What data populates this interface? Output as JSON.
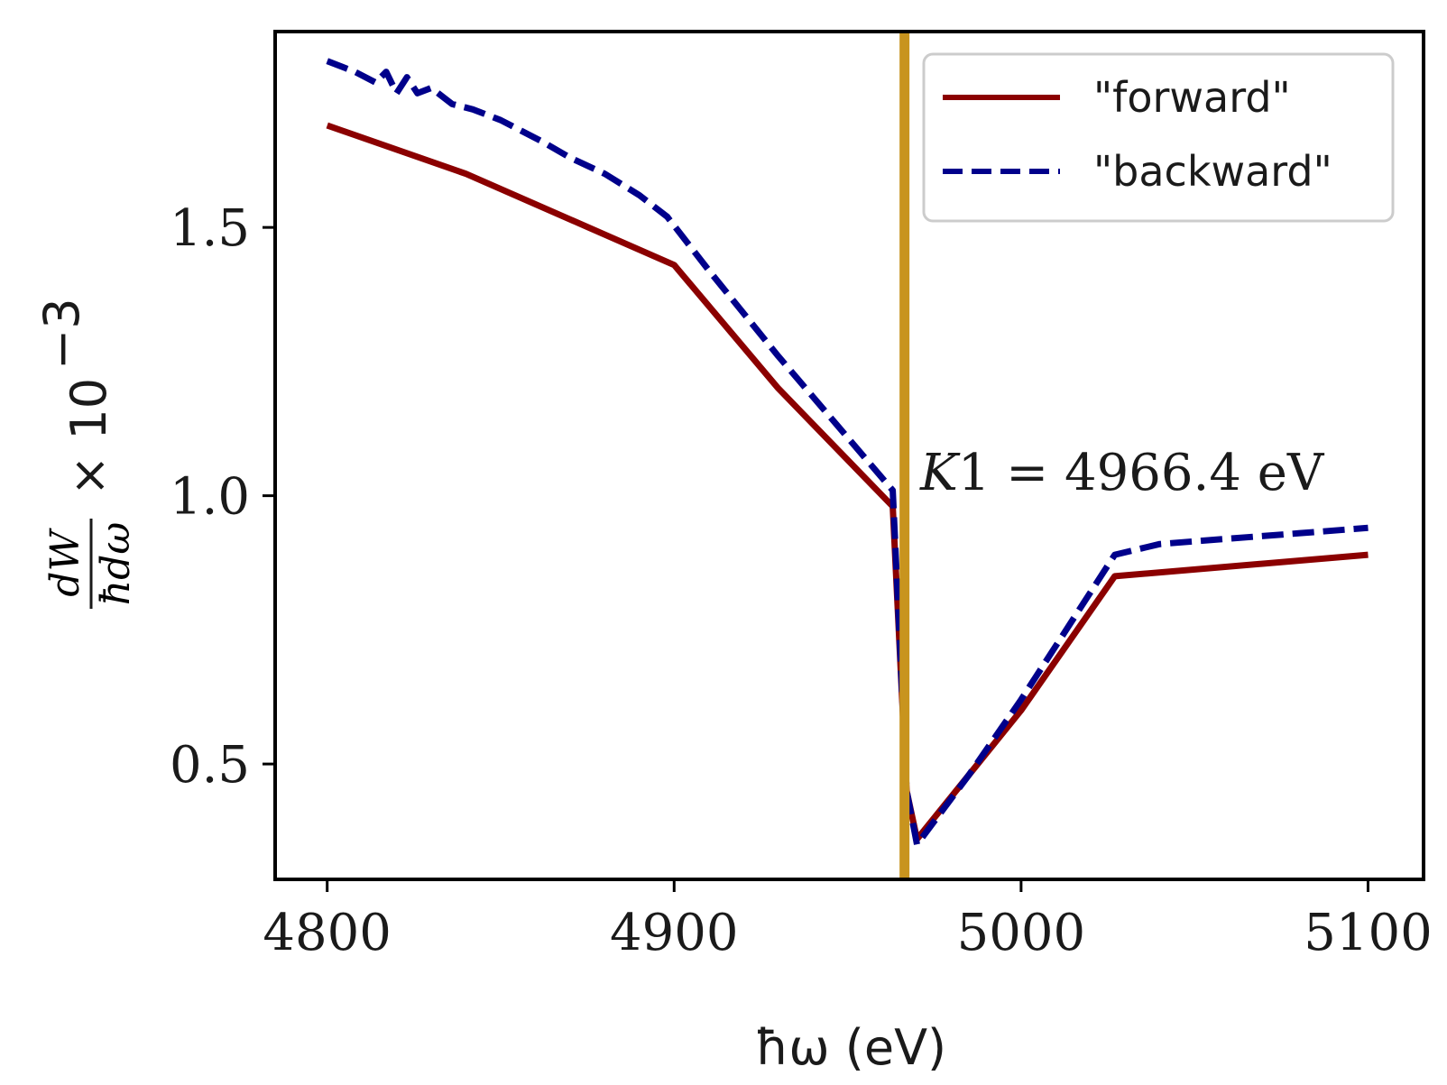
{
  "chart_data": {
    "type": "line",
    "title": "",
    "xlabel": "ħω (eV)",
    "ylabel_frac_num": "dW",
    "ylabel_frac_den": "ħdω",
    "ylabel_suffix": "× 10",
    "ylabel_exp": "−3",
    "xlim": [
      4785,
      5116
    ],
    "ylim": [
      0.285,
      1.865
    ],
    "xticks": [
      4800,
      4900,
      5000,
      5100
    ],
    "xtick_labels": [
      "4800",
      "4900",
      "5000",
      "5100"
    ],
    "yticks": [
      0.5,
      1.0,
      1.5
    ],
    "ytick_labels": [
      "0.5",
      "1.0",
      "1.5"
    ],
    "grid": false,
    "legend_position": "top-right",
    "vline": {
      "x": 4966.4,
      "color": "#c8941e"
    },
    "annotation": {
      "var": "K",
      "rest": "1 = 4966.4 eV"
    },
    "series": [
      {
        "name": "\"forward\"",
        "color": "#8b0000",
        "style": "solid",
        "x": [
          4800,
          4840,
          4900,
          4930,
          4963,
          4967,
          4970,
          4985,
          5000,
          5027,
          5100
        ],
        "y": [
          1.69,
          1.6,
          1.43,
          1.2,
          0.98,
          0.45,
          0.36,
          0.48,
          0.6,
          0.85,
          0.89
        ]
      },
      {
        "name": "\"backward\"",
        "color": "#00008b",
        "style": "dashed",
        "x": [
          4800,
          4808,
          4814,
          4817,
          4820,
          4823,
          4826,
          4830,
          4836,
          4842,
          4850,
          4856,
          4862,
          4870,
          4880,
          4890,
          4898,
          4910,
          4930,
          4963,
          4967,
          4970,
          4985,
          5000,
          5027,
          5040,
          5060,
          5080,
          5100
        ],
        "y": [
          1.81,
          1.79,
          1.77,
          1.79,
          1.75,
          1.78,
          1.75,
          1.76,
          1.73,
          1.72,
          1.7,
          1.68,
          1.66,
          1.63,
          1.6,
          1.56,
          1.52,
          1.42,
          1.26,
          1.01,
          0.45,
          0.35,
          0.48,
          0.62,
          0.89,
          0.91,
          0.92,
          0.93,
          0.94
        ]
      }
    ]
  }
}
